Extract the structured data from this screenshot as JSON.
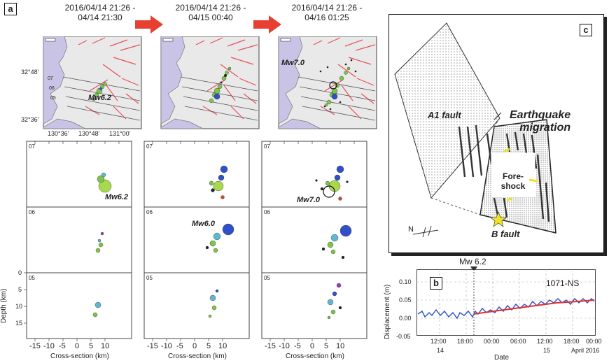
{
  "panel_a": {
    "letter": "a",
    "time_windows": [
      {
        "line1": "2016/04/14 21:26 -",
        "line2": "04/14 21:30"
      },
      {
        "line1": "2016/04/14 21:26 -",
        "line2": "04/15 00:40"
      },
      {
        "line1": "2016/04/14 21:26 -",
        "line2": "04/16 01:25"
      }
    ],
    "map_lat_ticks": [
      "32°48'",
      "32°36'"
    ],
    "map_lon_ticks": [
      "130°36'",
      "130°48'",
      "131°00'"
    ],
    "map_section_labels": [
      "07",
      "06",
      "05"
    ],
    "map_quakes": [
      "Mw6.2",
      "",
      "Mw7.0"
    ],
    "section_ids": [
      "07",
      "06",
      "05"
    ],
    "section_labels": {
      "col1_07": "Mw6.2",
      "col2_06": "Mw6.0",
      "col3_07": "Mw7.0"
    },
    "depth_label": "Depth (km)",
    "depth_ticks": [
      "0",
      "5",
      "10",
      "15"
    ],
    "x_ticks": [
      "-15",
      "-10",
      "-5",
      "0",
      "5",
      "10"
    ],
    "x_label": "Cross-section (km)"
  },
  "panel_b": {
    "letter": "b",
    "event_label": "Mw 6.2",
    "station": "1071-NS",
    "y_label": "Displacement (m)",
    "y_ticks": [
      "0.10",
      "0.05",
      "0.00",
      "-0.05"
    ],
    "x_ticks": [
      "12:00",
      "18:00",
      "00:00",
      "06:00",
      "12:00",
      "18:00",
      "00:00"
    ],
    "day_labels": [
      "14",
      "15",
      "April 2016"
    ],
    "x_label": "Date"
  },
  "panel_c": {
    "letter": "c",
    "fault_a": "A1 fault",
    "fault_b": "B fault",
    "migration_line1": "Earthquake",
    "migration_line2": "migration",
    "foreshock_line1": "Fore-",
    "foreshock_line2": "shock",
    "north_label": "N"
  },
  "colors": {
    "fault_red": "#e8505a",
    "sea": "#c9c3e6",
    "trace_blue": "#2a52c4",
    "trend_red": "#e03030",
    "green_quake": "#7dc54a",
    "blue_quake": "#3050c8",
    "yellow": "#f0e028"
  }
}
